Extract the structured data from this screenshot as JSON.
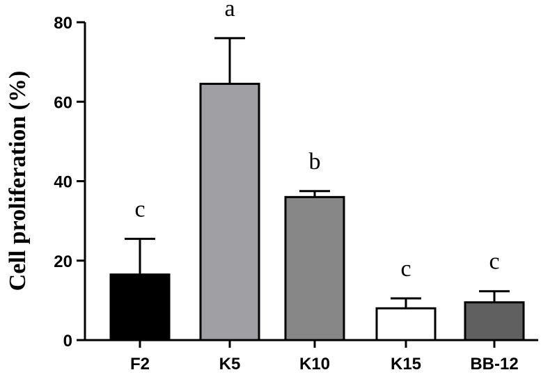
{
  "chart_data": {
    "type": "bar",
    "categories": [
      "F2",
      "K5",
      "K10",
      "K15",
      "BB-12"
    ],
    "values": [
      16.5,
      64.5,
      36,
      8,
      9.5
    ],
    "errors": [
      9,
      11.5,
      1.5,
      2.5,
      2.8
    ],
    "significance": [
      "c",
      "a",
      "b",
      "c",
      "c"
    ],
    "bar_colors": [
      "#000000",
      "#a0a0a4",
      "#878787",
      "#ffffff",
      "#606060"
    ],
    "ylabel": "Cell proliferation (%)",
    "xlabel": "",
    "ylim": [
      0,
      80
    ],
    "yticks": [
      0,
      20,
      40,
      60,
      80
    ],
    "grid": false,
    "legend": "none"
  }
}
